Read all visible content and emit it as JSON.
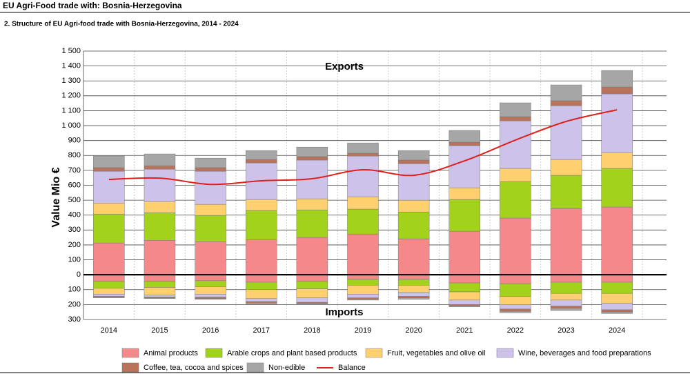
{
  "header": "EU Agri-Food trade with: Bosnia-Herzegovina",
  "chart_data": {
    "type": "stacked-bar-line",
    "title": "2. Structure of EU Agri-food trade with Bosnia-Herzegovina, 2014 - 2024",
    "y_label": "Value Mio €",
    "annotations": [
      "Exports",
      "Imports"
    ],
    "categories": [
      "2014",
      "2015",
      "2016",
      "2017",
      "2018",
      "2019",
      "2020",
      "2021",
      "2022",
      "2023",
      "2024"
    ],
    "ylim": [
      -300,
      1500
    ],
    "yticks": [
      {
        "value": 1500,
        "label": "1 500"
      },
      {
        "value": 1400,
        "label": "1 400"
      },
      {
        "value": 1300,
        "label": "1 300"
      },
      {
        "value": 1200,
        "label": "1 200"
      },
      {
        "value": 1100,
        "label": "1 100"
      },
      {
        "value": 1000,
        "label": "1 000"
      },
      900,
      800,
      700,
      600,
      500,
      400,
      300,
      200,
      100,
      0,
      {
        "value": -100,
        "label": "100"
      },
      {
        "value": -200,
        "label": "200"
      },
      {
        "value": -300,
        "label": "300"
      }
    ],
    "tick_colors": {
      "positive": "#2e9a2e",
      "negative": "#e00000"
    },
    "grid": true,
    "series": [
      {
        "name": "Animal products",
        "color": "#f4888a",
        "exports": [
          213,
          231,
          222,
          236,
          250,
          273,
          241,
          292,
          380,
          444,
          454
        ],
        "imports": [
          -45,
          -45,
          -40,
          -50,
          -45,
          -30,
          -30,
          -55,
          -60,
          -50,
          -50
        ]
      },
      {
        "name": "Arable crops and plant based products",
        "color": "#a3d21c",
        "exports": [
          194,
          185,
          176,
          195,
          185,
          167,
          180,
          213,
          245,
          223,
          259
        ],
        "imports": [
          -45,
          -40,
          -40,
          -50,
          -50,
          -40,
          -40,
          -60,
          -85,
          -75,
          -75
        ]
      },
      {
        "name": "Fruit, vegetables and olive oil",
        "color": "#ffd070",
        "exports": [
          74,
          75,
          74,
          74,
          74,
          83,
          79,
          78,
          88,
          106,
          106
        ],
        "imports": [
          -40,
          -50,
          -50,
          -60,
          -60,
          -60,
          -50,
          -55,
          -55,
          -45,
          -65
        ]
      },
      {
        "name": "Wine, beverages and food preparations",
        "color": "#cdc2ea",
        "exports": [
          213,
          217,
          222,
          245,
          260,
          273,
          245,
          283,
          319,
          361,
          394
        ],
        "imports": [
          -15,
          -15,
          -20,
          -20,
          -30,
          -25,
          -25,
          -30,
          -30,
          -40,
          -45
        ]
      },
      {
        "name": "Coffee, tea, cocoa and spices",
        "color": "#b8735a",
        "exports": [
          24,
          23,
          24,
          23,
          23,
          19,
          24,
          23,
          28,
          33,
          46
        ],
        "imports": [
          -5,
          -5,
          -10,
          -10,
          -10,
          -10,
          -10,
          -10,
          -15,
          -15,
          -15
        ]
      },
      {
        "name": "Non-edible",
        "color": "#a6a6a6",
        "exports": [
          78,
          79,
          64,
          60,
          64,
          69,
          64,
          79,
          93,
          106,
          111
        ],
        "imports": [
          -5,
          -5,
          -5,
          -5,
          -5,
          -5,
          -10,
          -5,
          -10,
          -15,
          -10
        ]
      }
    ],
    "balance": {
      "name": "Balance",
      "color": "#e0201c",
      "values": [
        639,
        648,
        606,
        630,
        644,
        704,
        667,
        764,
        903,
        1028,
        1106
      ]
    }
  }
}
